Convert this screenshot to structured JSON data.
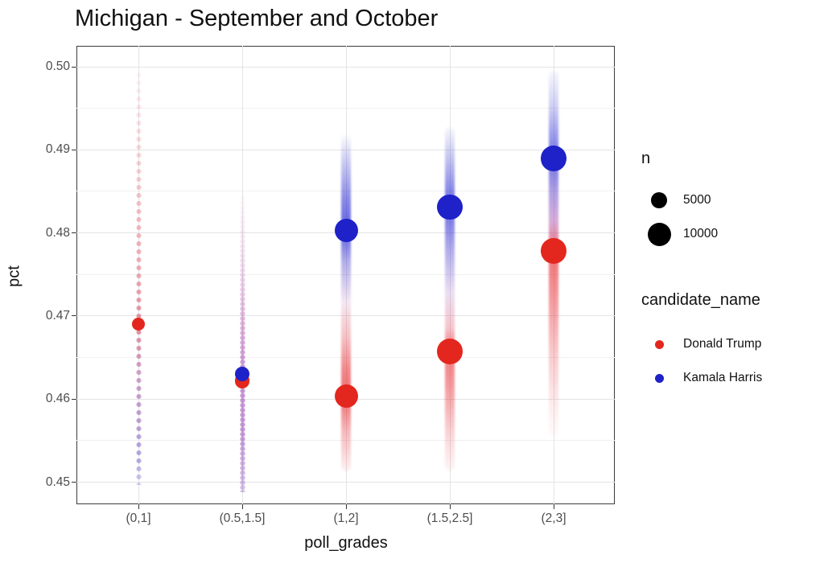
{
  "chart_data": {
    "type": "scatter",
    "title": "Michigan - September and October",
    "xlabel": "poll_grades",
    "ylabel": "pct",
    "categories": [
      "(0,1]",
      "(0.5,1.5]",
      "(1,2]",
      "(1.5,2.5]",
      "(2,3]"
    ],
    "y_tick_labels": [
      "0.50",
      "0.49",
      "0.48",
      "0.47",
      "0.46",
      "0.45"
    ],
    "y_ticks": [
      0.5,
      0.49,
      0.48,
      0.47,
      0.46,
      0.45
    ],
    "y_minor_ticks": [
      0.495,
      0.485,
      0.475,
      0.465,
      0.455
    ],
    "ylim": [
      0.45,
      0.5
    ],
    "grid": {
      "major_color": "#e4e4e4",
      "minor_color": "#f1f1f1",
      "panel_border": "#3c3c3c"
    },
    "legend_position": "right",
    "series": [
      {
        "name": "Donald Trump",
        "color": "#E3271E",
        "points": [
          {
            "category": "(0,1]",
            "pct": 0.469,
            "n": 3000
          },
          {
            "category": "(0.5,1.5]",
            "pct": 0.4622,
            "n": 4000
          },
          {
            "category": "(1,2]",
            "pct": 0.4604,
            "n": 10000
          },
          {
            "category": "(1.5,2.5]",
            "pct": 0.4657,
            "n": 12000
          },
          {
            "category": "(2,3]",
            "pct": 0.4778,
            "n": 12000
          }
        ]
      },
      {
        "name": "Kamala Harris",
        "color": "#1E22C8",
        "points": [
          {
            "category": "(0.5,1.5]",
            "pct": 0.463,
            "n": 4000
          },
          {
            "category": "(1,2]",
            "pct": 0.4803,
            "n": 10000
          },
          {
            "category": "(1.5,2.5]",
            "pct": 0.4831,
            "n": 12000
          },
          {
            "category": "(2,3]",
            "pct": 0.489,
            "n": 12000
          }
        ]
      }
    ],
    "posterior_trails": [
      {
        "category": "(0,1]",
        "style": "beads",
        "pct_top": 0.4995,
        "pct_bottom": 0.4497,
        "stops": [
          [
            0,
            "rgba(225,80,90,0.05)"
          ],
          [
            0.12,
            "rgba(225,80,100,0.16)"
          ],
          [
            0.3,
            "rgba(220,70,90,0.3)"
          ],
          [
            0.5,
            "rgba(210,55,75,0.42)"
          ],
          [
            0.62,
            "rgba(200,45,70,0.5)"
          ],
          [
            0.72,
            "rgba(165,60,140,0.48)"
          ],
          [
            0.85,
            "rgba(125,70,175,0.5)"
          ],
          [
            0.94,
            "rgba(100,80,200,0.48)"
          ],
          [
            1,
            "rgba(115,100,215,0.3)"
          ]
        ]
      },
      {
        "category": "(0.5,1.5]",
        "style": "beads-dense",
        "pct_top": 0.4845,
        "pct_bottom": 0.4488,
        "stops": [
          [
            0,
            "rgba(195,90,170,0.04)"
          ],
          [
            0.15,
            "rgba(190,85,170,0.14)"
          ],
          [
            0.3,
            "rgba(180,75,170,0.28)"
          ],
          [
            0.45,
            "rgba(170,60,165,0.42)"
          ],
          [
            0.6,
            "rgba(150,50,170,0.5)"
          ],
          [
            0.8,
            "rgba(135,50,175,0.5)"
          ],
          [
            1,
            "rgba(125,60,185,0.32)"
          ]
        ]
      },
      {
        "category": "(1,2]",
        "style": "band",
        "pct_top": 0.492,
        "pct_bottom": 0.4513,
        "stops": [
          [
            0,
            "rgba(45,45,205,0)"
          ],
          [
            0.06,
            "rgba(45,45,205,0.18)"
          ],
          [
            0.2,
            "rgba(35,35,208,0.55)"
          ],
          [
            0.29,
            "rgba(28,30,212,0.7)"
          ],
          [
            0.38,
            "rgba(85,75,210,0.45)"
          ],
          [
            0.5,
            "rgba(205,150,195,0.22)"
          ],
          [
            0.6,
            "rgba(232,95,105,0.38)"
          ],
          [
            0.7,
            "rgba(231,55,60,0.6)"
          ],
          [
            0.78,
            "rgba(230,40,45,0.68)"
          ],
          [
            0.88,
            "rgba(234,75,85,0.4)"
          ],
          [
            1,
            "rgba(240,120,130,0.1)"
          ]
        ]
      },
      {
        "category": "(1.5,2.5]",
        "style": "band",
        "pct_top": 0.4927,
        "pct_bottom": 0.4513,
        "stops": [
          [
            0,
            "rgba(45,45,205,0.03)"
          ],
          [
            0.1,
            "rgba(42,42,206,0.3)"
          ],
          [
            0.23,
            "rgba(28,30,212,0.66)"
          ],
          [
            0.35,
            "rgba(75,65,210,0.45)"
          ],
          [
            0.48,
            "rgba(175,125,205,0.25)"
          ],
          [
            0.58,
            "rgba(228,95,115,0.35)"
          ],
          [
            0.65,
            "rgba(230,45,50,0.62)"
          ],
          [
            0.75,
            "rgba(232,55,62,0.5)"
          ],
          [
            0.9,
            "rgba(236,92,102,0.24)"
          ],
          [
            1,
            "rgba(240,130,140,0.07)"
          ]
        ]
      },
      {
        "category": "(2,3]",
        "style": "band",
        "pct_top": 0.4995,
        "pct_bottom": 0.4555,
        "stops": [
          [
            0,
            "rgba(60,60,210,0.04)"
          ],
          [
            0.1,
            "rgba(52,52,210,0.24)"
          ],
          [
            0.24,
            "rgba(28,30,212,0.62)"
          ],
          [
            0.33,
            "rgba(95,65,200,0.5)"
          ],
          [
            0.41,
            "rgba(165,70,170,0.45)"
          ],
          [
            0.5,
            "rgba(230,45,50,0.66)"
          ],
          [
            0.62,
            "rgba(231,58,64,0.52)"
          ],
          [
            0.78,
            "rgba(234,85,95,0.3)"
          ],
          [
            0.92,
            "rgba(238,112,122,0.12)"
          ],
          [
            1,
            "rgba(240,130,140,0.03)"
          ]
        ]
      }
    ],
    "legend": {
      "size": {
        "title": "n",
        "entries": [
          {
            "label": "5000",
            "n": 5000
          },
          {
            "label": "10000",
            "n": 10000
          }
        ]
      },
      "color": {
        "title": "candidate_name",
        "entries": [
          {
            "label": "Donald Trump",
            "color": "#E3271E"
          },
          {
            "label": "Kamala Harris",
            "color": "#1E22C8"
          }
        ]
      }
    }
  }
}
